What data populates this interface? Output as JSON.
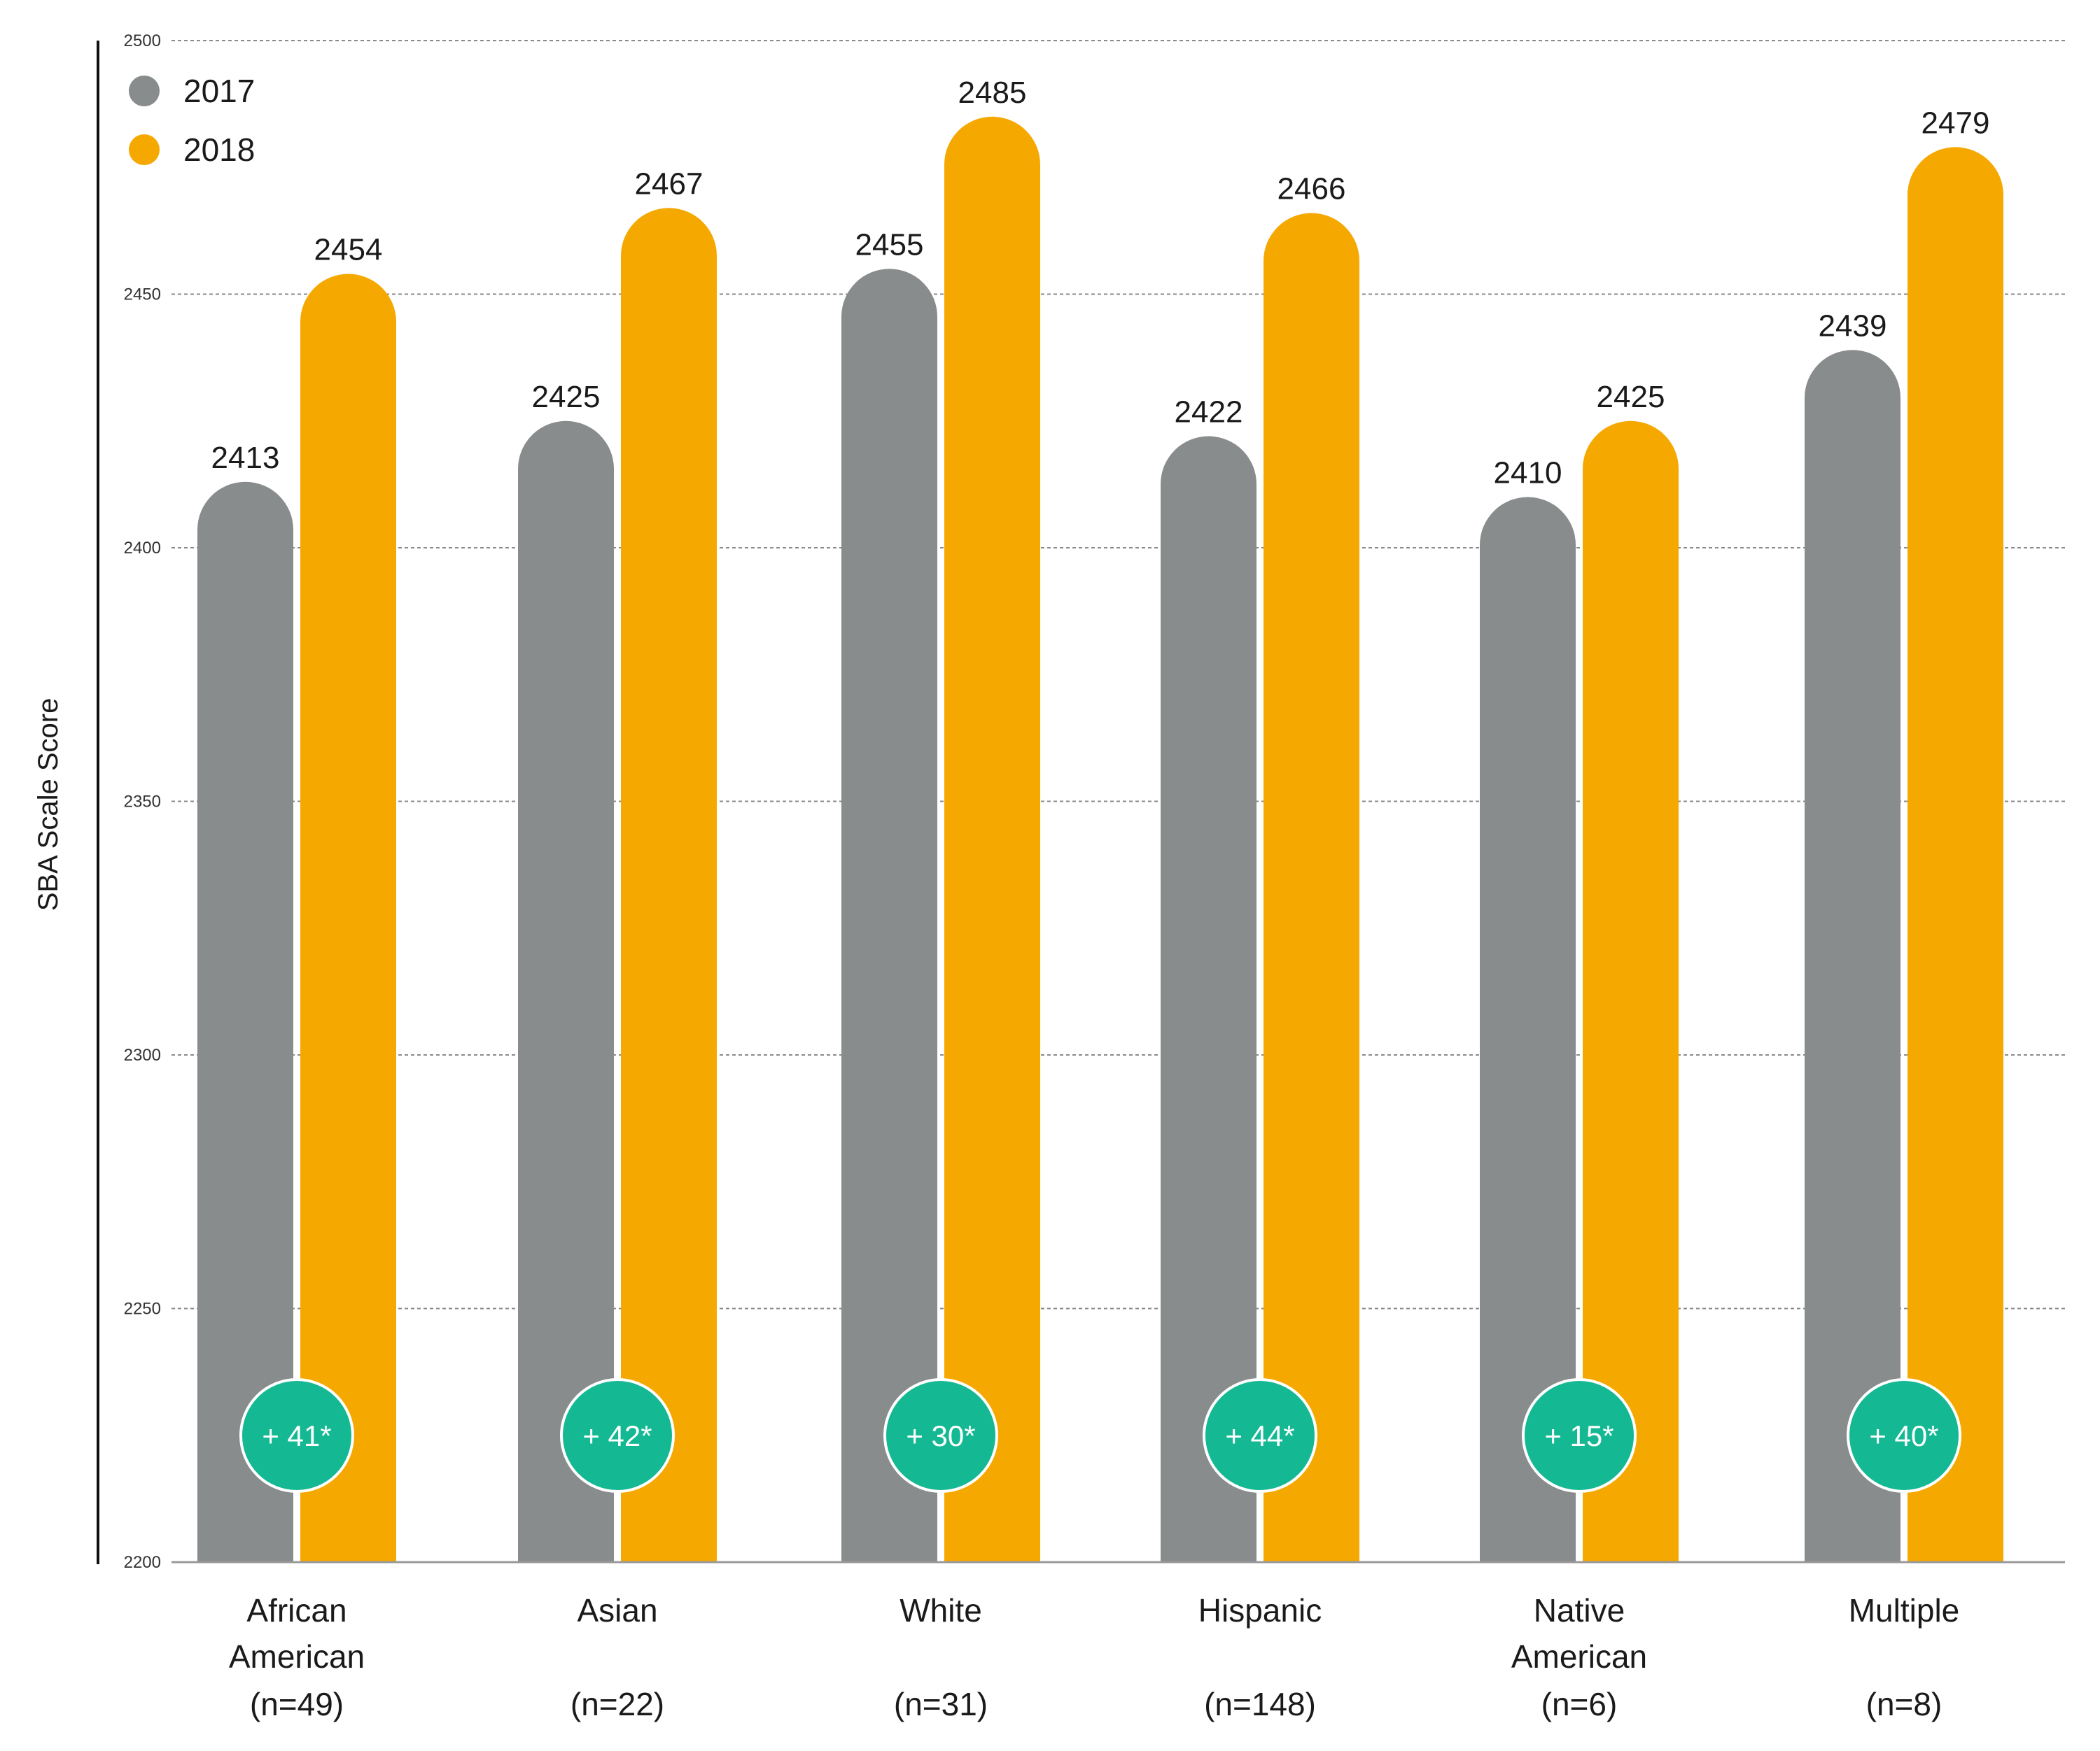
{
  "chart_data": {
    "type": "bar",
    "title": "",
    "xlabel": "",
    "ylabel": "SBA Scale Score",
    "ylim": [
      2200,
      2500
    ],
    "yticks": [
      2200,
      2250,
      2300,
      2350,
      2400,
      2450,
      2500
    ],
    "grid": true,
    "legend_position": "top-left",
    "categories": [
      {
        "lines": [
          "African",
          "American"
        ],
        "n": "(n=49)"
      },
      {
        "lines": [
          "Asian"
        ],
        "n": "(n=22)"
      },
      {
        "lines": [
          "White"
        ],
        "n": "(n=31)"
      },
      {
        "lines": [
          "Hispanic"
        ],
        "n": "(n=148)"
      },
      {
        "lines": [
          "Native",
          "American"
        ],
        "n": "(n=6)"
      },
      {
        "lines": [
          "Multiple"
        ],
        "n": "(n=8)"
      }
    ],
    "series": [
      {
        "name": "2017",
        "color": "#898c8c",
        "values": [
          2413,
          2425,
          2455,
          2422,
          2410,
          2439
        ]
      },
      {
        "name": "2018",
        "color": "#f5a800",
        "values": [
          2454,
          2467,
          2485,
          2466,
          2425,
          2479
        ]
      }
    ],
    "change_labels": [
      "+ 41*",
      "+ 42*",
      "+ 30*",
      "+ 44*",
      "+ 15*",
      "+ 40*"
    ],
    "change_color": "#14b893"
  }
}
